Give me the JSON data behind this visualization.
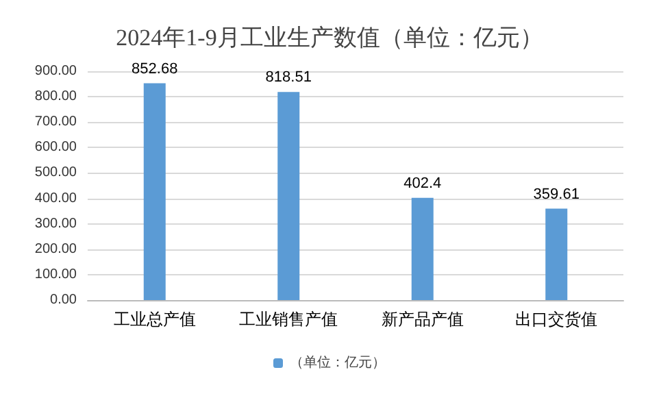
{
  "chart_data": {
    "type": "bar",
    "title": "2024年1-9月工业生产数值（单位：亿元）",
    "categories": [
      "工业总产值",
      "工业销售产值",
      "新产品产值",
      "出口交货值"
    ],
    "series": [
      {
        "name": "（单位：亿元）",
        "color": "#5b9bd5",
        "values": [
          852.68,
          818.51,
          402.4,
          359.61
        ]
      }
    ],
    "ylim": [
      0,
      900
    ],
    "yticks": [
      {
        "value": 0,
        "label": "0.00"
      },
      {
        "value": 100,
        "label": "100.00"
      },
      {
        "value": 200,
        "label": "200.00"
      },
      {
        "value": 300,
        "label": "300.00"
      },
      {
        "value": 400,
        "label": "400.00"
      },
      {
        "value": 500,
        "label": "500.00"
      },
      {
        "value": 600,
        "label": "600.00"
      },
      {
        "value": 700,
        "label": "700.00"
      },
      {
        "value": 800,
        "label": "800.00"
      },
      {
        "value": 900,
        "label": "900.00"
      }
    ],
    "grid": "y",
    "legend": "bottom",
    "data_labels": true
  }
}
